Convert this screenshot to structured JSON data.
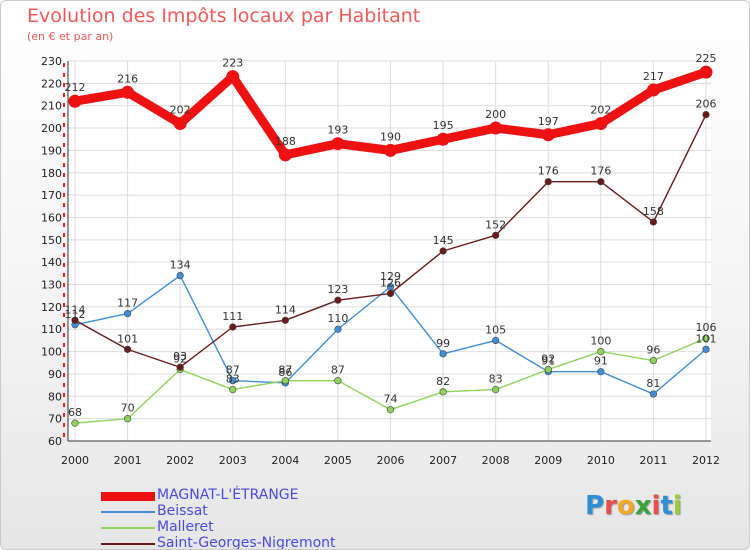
{
  "header": {
    "title": "Evolution des Impôts locaux par Habitant",
    "subtitle": "(en € et par an)"
  },
  "brand": {
    "name": "Proxiti",
    "letter_colors": [
      "#2e8fd6",
      "#e94e4e",
      "#f5a623",
      "#3aa33a",
      "#e94e4e",
      "#2e8fd6",
      "#9ccc3c"
    ]
  },
  "chart_data": {
    "type": "line",
    "title": "Evolution des Impôts locaux par Habitant",
    "subtitle": "(en € et par an)",
    "xlabel": "",
    "ylabel": "",
    "ylim": [
      60,
      230
    ],
    "ytick_step": 10,
    "grid": true,
    "legend_position": "bottom-left",
    "x": [
      2000,
      2001,
      2002,
      2003,
      2004,
      2005,
      2006,
      2007,
      2008,
      2009,
      2010,
      2011,
      2012
    ],
    "series": [
      {
        "name": "MAGNAT-L'ÉTRANGE",
        "color": "#ee1111",
        "emphasis": true,
        "values": [
          212,
          216,
          202,
          223,
          188,
          193,
          190,
          195,
          200,
          197,
          202,
          217,
          225
        ]
      },
      {
        "name": "Beissat",
        "color": "#3f8ed6",
        "emphasis": false,
        "values": [
          112,
          117,
          134,
          87,
          86,
          110,
          129,
          99,
          105,
          91,
          91,
          81,
          101
        ]
      },
      {
        "name": "Malleret",
        "color": "#8fd45a",
        "emphasis": false,
        "values": [
          68,
          70,
          92,
          83,
          87,
          87,
          74,
          82,
          83,
          92,
          100,
          96,
          106
        ]
      },
      {
        "name": "Saint-Georges-Nigremont",
        "color": "#6b1a1a",
        "emphasis": false,
        "values": [
          114,
          101,
          93,
          111,
          114,
          123,
          126,
          145,
          152,
          176,
          176,
          158,
          206
        ]
      }
    ]
  }
}
